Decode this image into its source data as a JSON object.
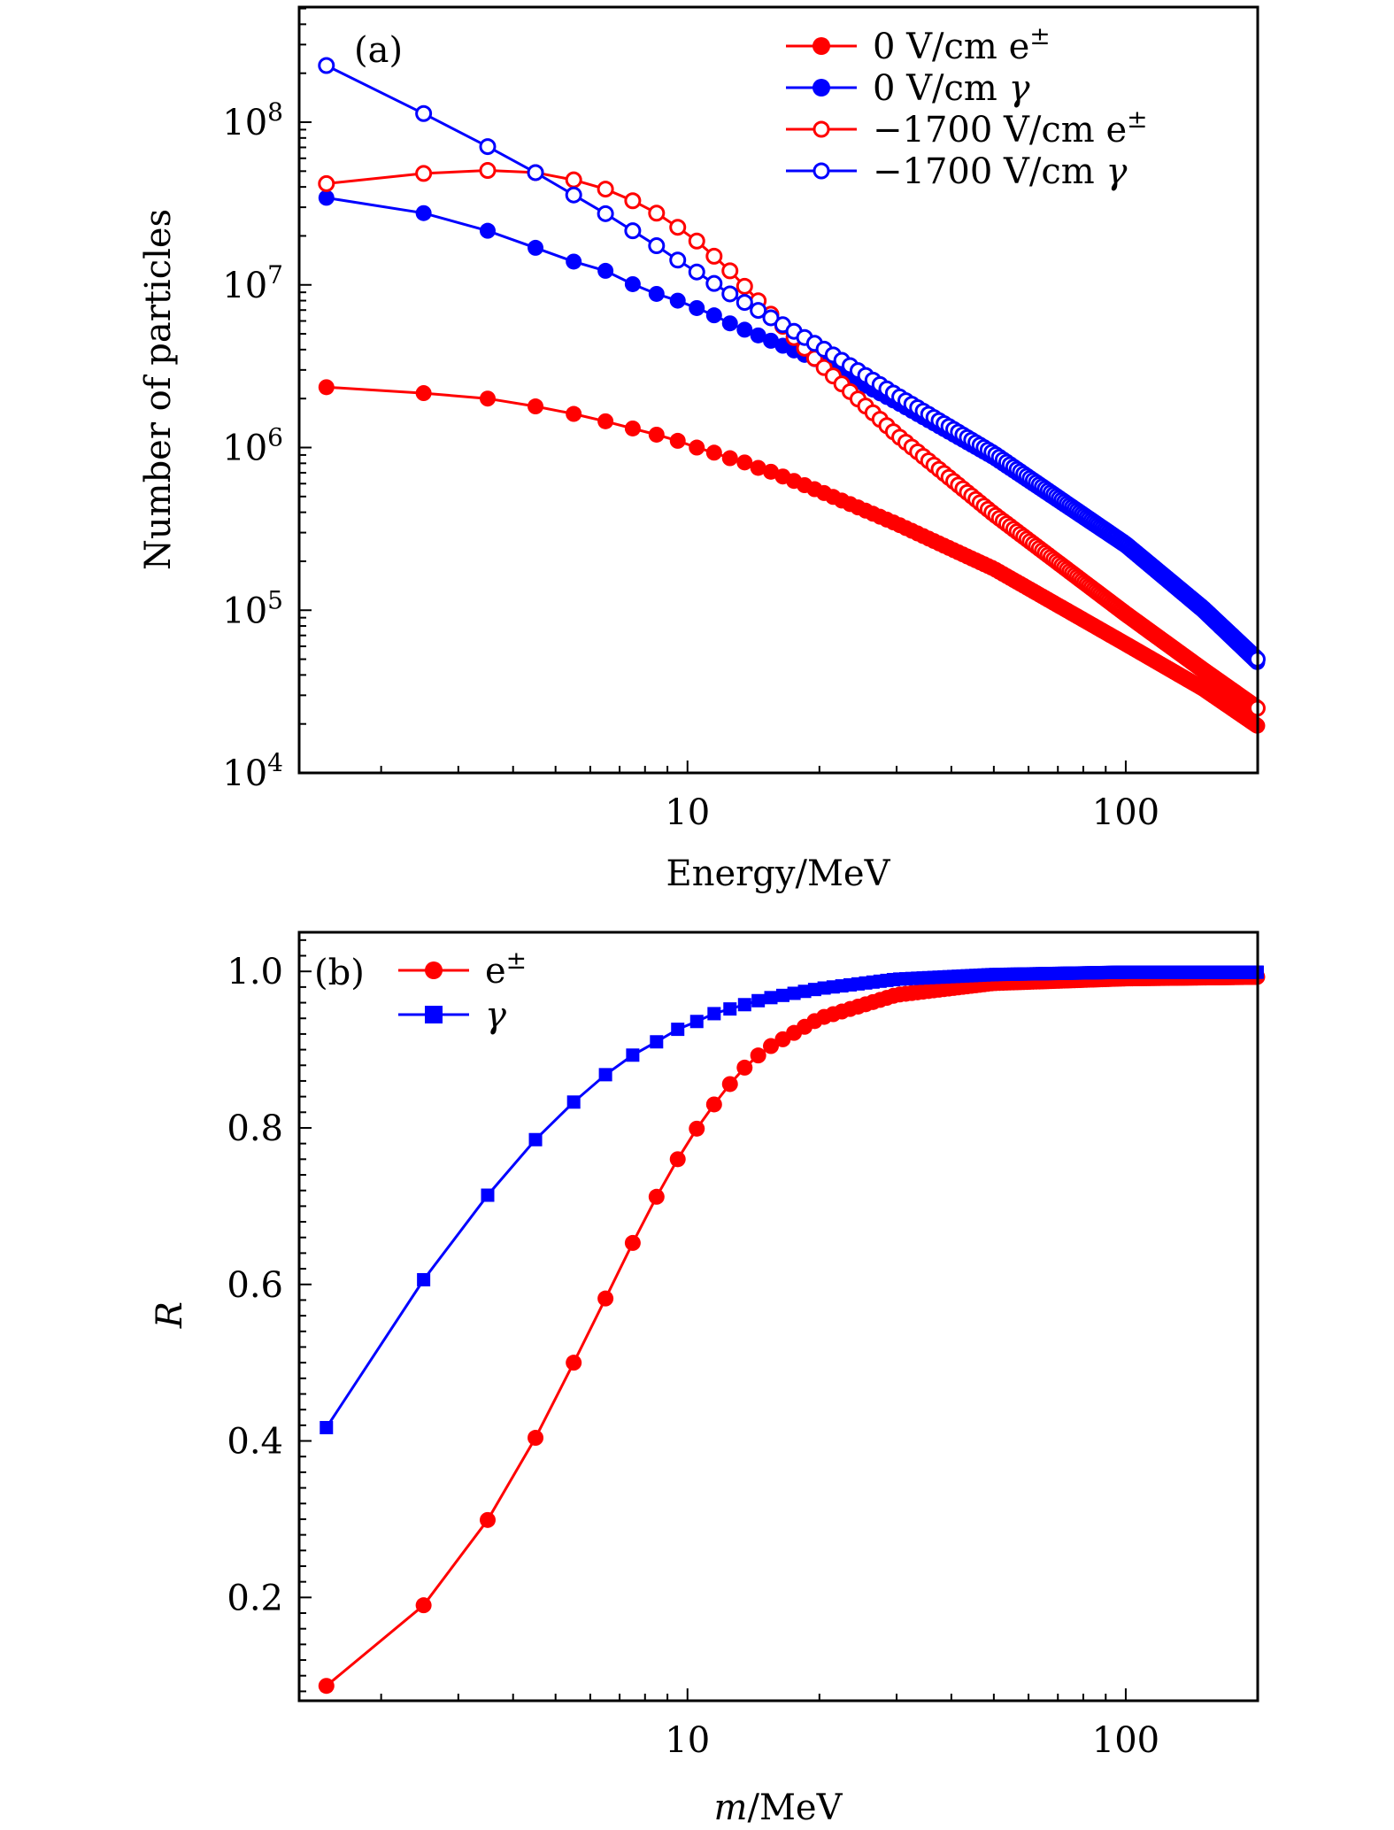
{
  "chart_data": [
    {
      "type": "line",
      "panel_label": "(a)",
      "xlabel": "Energy/MeV",
      "ylabel": "Number of particles",
      "xscale": "log",
      "yscale": "log",
      "xlim": [
        1.3,
        200
      ],
      "ylim": [
        10000,
        510000000
      ],
      "x_tick_labels": [
        {
          "value": 10,
          "label": "10"
        },
        {
          "value": 100,
          "label": "100"
        }
      ],
      "y_tick_labels": [
        {
          "value": 10000,
          "base": "10",
          "exp": "4"
        },
        {
          "value": 100000,
          "base": "10",
          "exp": "5"
        },
        {
          "value": 1000000,
          "base": "10",
          "exp": "6"
        },
        {
          "value": 10000000,
          "base": "10",
          "exp": "7"
        },
        {
          "value": 100000000,
          "base": "10",
          "exp": "8"
        }
      ],
      "x_sampling": {
        "start": 1.5,
        "step": 1,
        "end": 199.5
      },
      "legend_position": "top-right",
      "series": [
        {
          "name": "0 V/cm e±",
          "legend_label": "0 V/cm e",
          "legend_sup": "±",
          "color": "#ff0000",
          "marker": "filled-circle",
          "anchors_x": [
            1.5,
            2.5,
            3.5,
            4.5,
            5.5,
            6.5,
            7.5,
            8.5,
            9.5,
            10.5,
            11.5,
            12.5,
            13.5,
            14.5,
            15.5,
            20,
            30,
            50,
            100,
            150,
            199.5
          ],
          "anchors_y": [
            2350000,
            2160000,
            2000000,
            1790000,
            1610000,
            1450000,
            1310000,
            1200000,
            1100000,
            1000000,
            930000,
            860000,
            810000,
            750000,
            710000,
            540000,
            340000,
            180000,
            62000,
            33000,
            19500
          ]
        },
        {
          "name": "0 V/cm γ",
          "legend_label": "0 V/cm ",
          "legend_sup": "",
          "legend_gamma": "γ",
          "color": "#0000ff",
          "marker": "filled-circle",
          "anchors_x": [
            1.5,
            2.5,
            3.5,
            4.5,
            5.5,
            6.5,
            7.5,
            8.5,
            9.5,
            10.5,
            11.5,
            12.5,
            13.5,
            20,
            30,
            50,
            100,
            150,
            199.5
          ],
          "anchors_y": [
            34300000,
            27600000,
            21500000,
            16900000,
            13900000,
            12200000,
            10100000,
            8800000,
            8000000,
            7200000,
            6500000,
            5800000,
            5300000,
            3400000,
            1900000,
            870000,
            250000,
            100000,
            48000
          ]
        },
        {
          "name": "−1700 V/cm e±",
          "legend_label": "−1700 V/cm e",
          "legend_sup": "±",
          "color": "#ff0000",
          "marker": "open-circle",
          "anchors_x": [
            1.5,
            2.5,
            3.5,
            4.5,
            5.5,
            6.5,
            7.5,
            8.5,
            9.5,
            10.5,
            11.5,
            12.5,
            13.5,
            15.5,
            20,
            30,
            50,
            100,
            150,
            199.5
          ],
          "anchors_y": [
            41900000,
            48400000,
            50500000,
            49000000,
            44200000,
            38800000,
            32900000,
            27600000,
            22600000,
            18600000,
            15000000,
            12200000,
            9800000,
            6600000,
            3300000,
            1200000,
            390000,
            95000,
            43000,
            25000
          ]
        },
        {
          "name": "−1700 V/cm γ",
          "legend_label": "−1700 V/cm ",
          "legend_sup": "",
          "legend_gamma": "γ",
          "color": "#0000ff",
          "marker": "open-circle",
          "anchors_x": [
            1.5,
            2.5,
            3.5,
            4.5,
            5.5,
            6.5,
            7.5,
            8.5,
            9.5,
            10.5,
            11.5,
            12.5,
            13.5,
            20,
            30,
            50,
            100,
            150,
            199.5
          ],
          "anchors_y": [
            223000000,
            113000000,
            70800000,
            49000000,
            35700000,
            27400000,
            21500000,
            17400000,
            14200000,
            12000000,
            10200000,
            8800000,
            7800000,
            4200000,
            2100000,
            920000,
            255000,
            103000,
            50000
          ]
        }
      ]
    },
    {
      "type": "line",
      "panel_label": "(b)",
      "xlabel_italic": "m",
      "xlabel_rest": "/MeV",
      "ylabel": "R",
      "xscale": "log",
      "yscale": "linear",
      "xlim": [
        1.3,
        200
      ],
      "ylim": [
        0.068,
        1.05
      ],
      "x_tick_labels": [
        {
          "value": 10,
          "label": "10"
        },
        {
          "value": 100,
          "label": "100"
        }
      ],
      "y_tick_labels": [
        {
          "value": 0.2,
          "label": "0.2"
        },
        {
          "value": 0.4,
          "label": "0.4"
        },
        {
          "value": 0.6,
          "label": "0.6"
        },
        {
          "value": 0.8,
          "label": "0.8"
        },
        {
          "value": 1.0,
          "label": "1.0"
        }
      ],
      "x_sampling": {
        "start": 1.5,
        "step": 1,
        "end": 199.5
      },
      "legend_position": "top-left",
      "series": [
        {
          "name": "e±",
          "legend_label": "e",
          "legend_sup": "±",
          "color": "#ff0000",
          "marker": "filled-circle",
          "anchors_x": [
            1.5,
            2.5,
            3.5,
            4.5,
            5.5,
            6.5,
            7.5,
            8.5,
            9.5,
            10.5,
            11.5,
            12.5,
            13.5,
            15,
            20,
            30,
            50,
            100,
            199.5
          ],
          "anchors_y": [
            0.087,
            0.19,
            0.299,
            0.404,
            0.5,
            0.582,
            0.653,
            0.712,
            0.76,
            0.799,
            0.83,
            0.856,
            0.877,
            0.9,
            0.94,
            0.97,
            0.985,
            0.991,
            0.993
          ]
        },
        {
          "name": "γ",
          "legend_label": "",
          "legend_sup": "",
          "legend_gamma": "γ",
          "color": "#0000ff",
          "marker": "filled-square",
          "anchors_x": [
            1.5,
            2.5,
            3.5,
            4.5,
            5.5,
            6.5,
            7.5,
            8.5,
            9.5,
            10.5,
            11.5,
            12.5,
            15,
            20,
            30,
            50,
            100,
            199.5
          ],
          "anchors_y": [
            0.417,
            0.606,
            0.714,
            0.785,
            0.833,
            0.868,
            0.893,
            0.91,
            0.926,
            0.936,
            0.946,
            0.952,
            0.965,
            0.978,
            0.99,
            0.996,
            0.999,
            0.999
          ]
        }
      ]
    }
  ]
}
